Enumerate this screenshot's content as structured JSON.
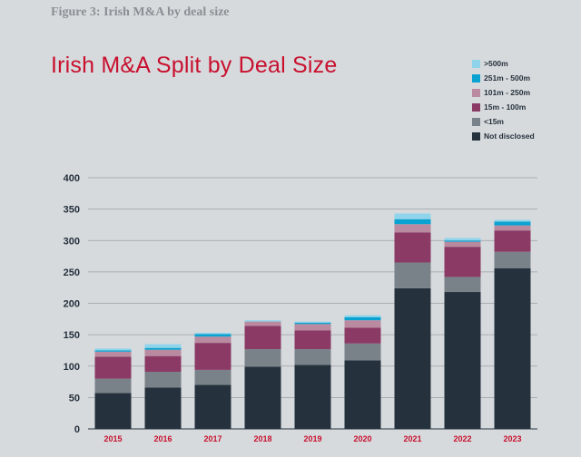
{
  "figure_label": "Figure 3: Irish M&A by deal size",
  "chart_data": {
    "type": "bar",
    "stacked": true,
    "title": "Irish M&A Split by Deal Size",
    "xlabel": "",
    "ylabel": "",
    "ylim": [
      0,
      400
    ],
    "yticks": [
      0,
      50,
      100,
      150,
      200,
      250,
      300,
      350,
      400
    ],
    "grid": true,
    "legend_position": "top-right",
    "categories": [
      "2015",
      "2016",
      "2017",
      "2018",
      "2019",
      "2020",
      "2021",
      "2022",
      "2023"
    ],
    "series": [
      {
        "name": "Not disclosed",
        "color": "#25313d",
        "values": [
          57,
          66,
          70,
          99,
          102,
          109,
          224,
          218,
          256
        ]
      },
      {
        "name": "<15m",
        "color": "#7a8289",
        "values": [
          23,
          25,
          24,
          28,
          25,
          27,
          41,
          24,
          26
        ]
      },
      {
        "name": "15m - 100m",
        "color": "#8a3a64",
        "values": [
          35,
          25,
          43,
          37,
          30,
          25,
          48,
          48,
          34
        ]
      },
      {
        "name": "101m - 250m",
        "color": "#b98aa0",
        "values": [
          8,
          10,
          10,
          7,
          10,
          12,
          13,
          8,
          8
        ]
      },
      {
        "name": "251m - 500m",
        "color": "#0aa2d0",
        "values": [
          2,
          3,
          4,
          0,
          2,
          5,
          8,
          2,
          6
        ]
      },
      {
        "name": ">500m",
        "color": "#8fd4ea",
        "values": [
          3,
          6,
          2,
          2,
          2,
          3,
          9,
          4,
          3
        ]
      }
    ]
  }
}
